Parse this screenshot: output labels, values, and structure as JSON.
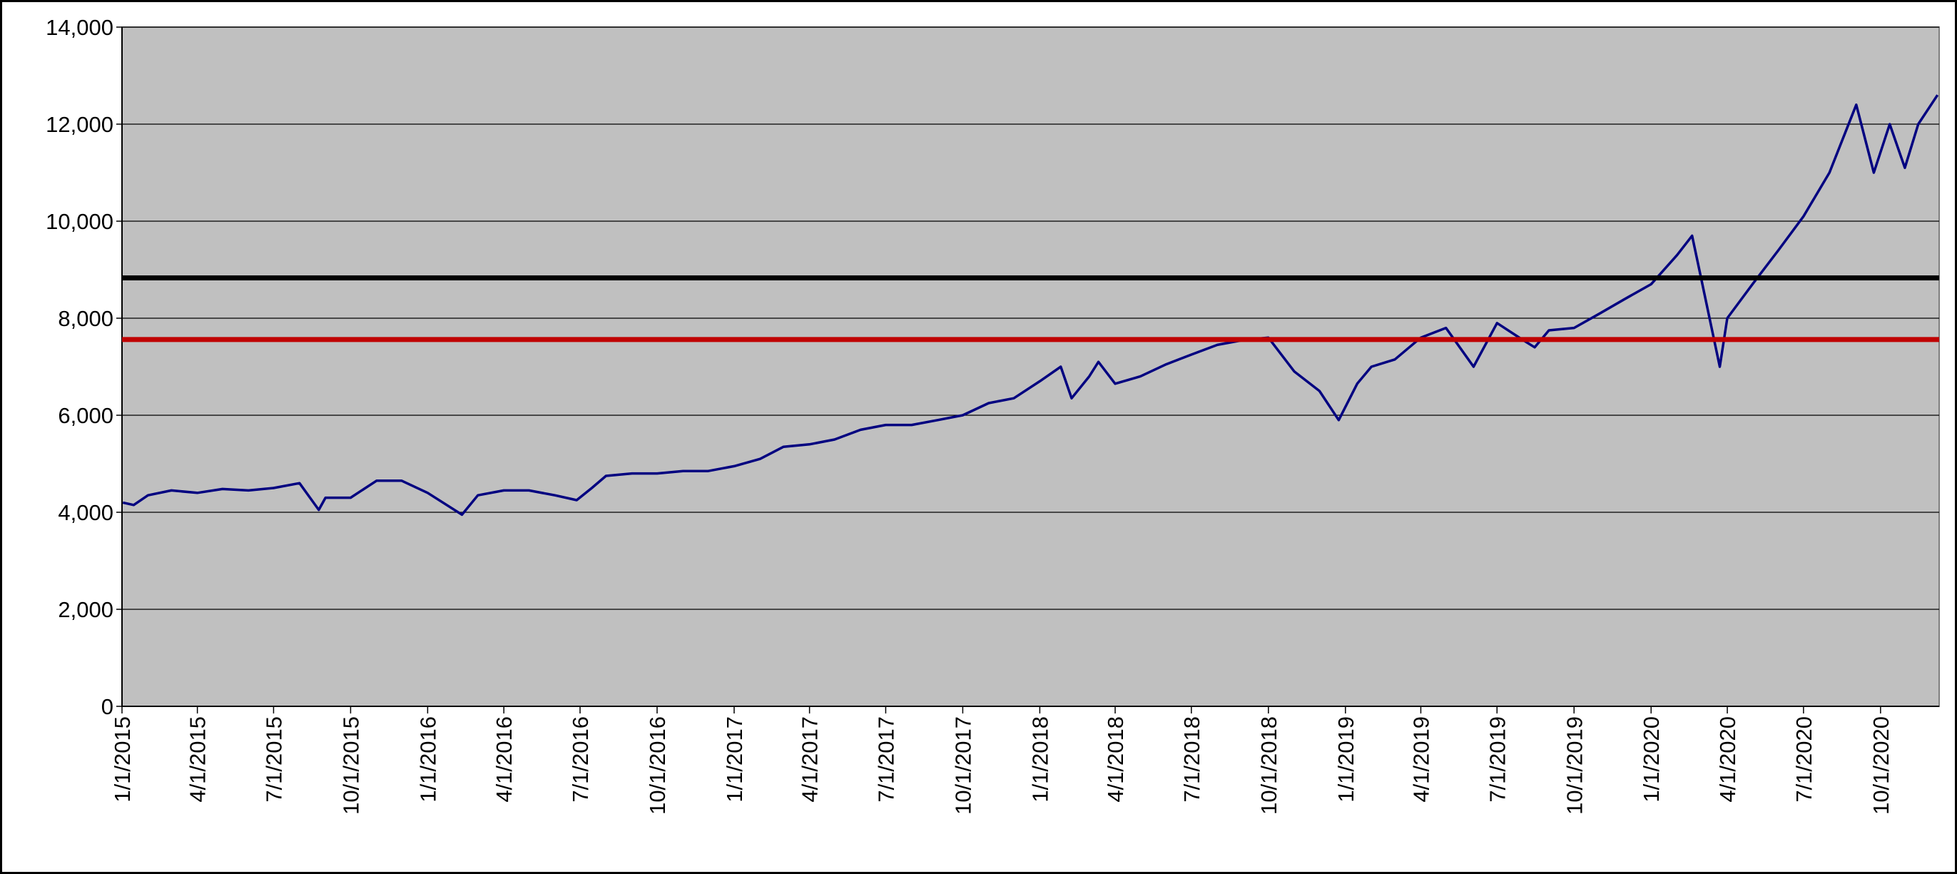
{
  "chart_data": {
    "type": "line",
    "x": [
      "1/2/2015",
      "1/15/2015",
      "2/1/2015",
      "3/1/2015",
      "4/1/2015",
      "5/1/2015",
      "6/1/2015",
      "7/1/2015",
      "8/1/2015",
      "8/24/2015",
      "9/1/2015",
      "10/1/2015",
      "11/1/2015",
      "12/1/2015",
      "1/1/2016",
      "2/11/2016",
      "3/1/2016",
      "4/1/2016",
      "5/1/2016",
      "6/1/2016",
      "6/27/2016",
      "7/15/2016",
      "8/1/2016",
      "9/1/2016",
      "10/1/2016",
      "11/1/2016",
      "12/1/2016",
      "1/1/2017",
      "2/1/2017",
      "3/1/2017",
      "4/1/2017",
      "5/1/2017",
      "6/1/2017",
      "7/1/2017",
      "8/1/2017",
      "9/1/2017",
      "10/1/2017",
      "11/1/2017",
      "12/1/2017",
      "1/1/2018",
      "1/26/2018",
      "2/8/2018",
      "3/1/2018",
      "3/12/2018",
      "4/1/2018",
      "5/1/2018",
      "6/1/2018",
      "7/1/2018",
      "8/1/2018",
      "9/1/2018",
      "10/1/2018",
      "11/1/2018",
      "12/1/2018",
      "12/24/2018",
      "1/15/2019",
      "2/1/2019",
      "3/1/2019",
      "4/1/2019",
      "5/1/2019",
      "6/3/2019",
      "7/1/2019",
      "8/1/2019",
      "8/15/2019",
      "9/1/2019",
      "10/1/2019",
      "11/1/2019",
      "12/1/2019",
      "1/1/2020",
      "2/1/2020",
      "2/19/2020",
      "3/1/2020",
      "3/23/2020",
      "4/1/2020",
      "5/1/2020",
      "6/1/2020",
      "7/1/2020",
      "8/1/2020",
      "9/2/2020",
      "9/23/2020",
      "10/12/2020",
      "10/30/2020",
      "11/15/2020",
      "12/8/2020"
    ],
    "series": [
      {
        "color": "#000080",
        "values": [
          4200,
          4150,
          4350,
          4450,
          4400,
          4480,
          4450,
          4500,
          4600,
          4050,
          4300,
          4300,
          4650,
          4650,
          4400,
          3950,
          4350,
          4450,
          4450,
          4350,
          4250,
          4500,
          4750,
          4800,
          4800,
          4850,
          4850,
          4950,
          5100,
          5350,
          5400,
          5500,
          5700,
          5800,
          5800,
          5900,
          6000,
          6250,
          6350,
          6700,
          7000,
          6350,
          6800,
          7100,
          6650,
          6800,
          7050,
          7250,
          7450,
          7550,
          7600,
          6900,
          6500,
          5900,
          6650,
          7000,
          7150,
          7600,
          7800,
          7000,
          7900,
          7550,
          7400,
          7750,
          7800,
          8100,
          8400,
          8700,
          9300,
          9700,
          8800,
          7000,
          8000,
          8700,
          9400,
          10100,
          11000,
          12400,
          11000,
          12000,
          11100,
          12000,
          12600
        ]
      }
    ],
    "hlines": [
      {
        "value": 8830,
        "color": "#000000"
      },
      {
        "value": 7560,
        "color": "#c00000"
      }
    ],
    "xlim": [
      "1/1/2015",
      "12/10/2020"
    ],
    "xticks": [
      "1/1/2015",
      "4/1/2015",
      "7/1/2015",
      "10/1/2015",
      "1/1/2016",
      "4/1/2016",
      "7/1/2016",
      "10/1/2016",
      "1/1/2017",
      "4/1/2017",
      "7/1/2017",
      "10/1/2017",
      "1/1/2018",
      "4/1/2018",
      "7/1/2018",
      "10/1/2018",
      "1/1/2019",
      "4/1/2019",
      "7/1/2019",
      "10/1/2019",
      "1/1/2020",
      "4/1/2020",
      "7/1/2020",
      "10/1/2020"
    ],
    "ylim": [
      0,
      14000
    ],
    "yticks": [
      0,
      {
        "value": 2000,
        "label": "2,000"
      },
      {
        "value": 4000,
        "label": "4,000"
      },
      {
        "value": 6000,
        "label": "6,000"
      },
      {
        "value": 8000,
        "label": "8,000"
      },
      {
        "value": 10000,
        "label": "10,000"
      },
      {
        "value": 12000,
        "label": "12,000"
      },
      {
        "value": 14000,
        "label": "14,000"
      }
    ],
    "grid": true
  }
}
